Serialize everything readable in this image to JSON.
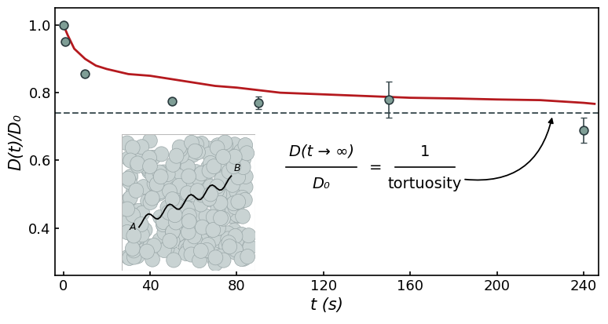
{
  "chart_data": {
    "type": "line",
    "x_label": "t (s)",
    "y_label": "D(t)/D₀",
    "xlim": [
      -4,
      247
    ],
    "xticks": [
      0,
      40,
      80,
      120,
      160,
      200,
      240
    ],
    "ylim": [
      0.26,
      1.05
    ],
    "yticks": [
      0.4,
      0.6,
      0.8,
      1.0
    ],
    "grid": false,
    "series": [
      {
        "type": "line",
        "color": "#b5191e",
        "line_style": "solid",
        "x": [
          0,
          2,
          5,
          10,
          15,
          20,
          30,
          40,
          50,
          60,
          70,
          80,
          100,
          120,
          140,
          160,
          180,
          200,
          220,
          240,
          245
        ],
        "values": [
          1.0,
          0.97,
          0.93,
          0.9,
          0.88,
          0.87,
          0.855,
          0.85,
          0.84,
          0.83,
          0.82,
          0.815,
          0.8,
          0.795,
          0.79,
          0.785,
          0.783,
          0.78,
          0.778,
          0.77,
          0.767
        ]
      },
      {
        "type": "scatter",
        "color": "#7f9e96",
        "marker": "o",
        "x": [
          0,
          1,
          10,
          50,
          90,
          150,
          240
        ],
        "values": [
          1.0,
          0.95,
          0.855,
          0.775,
          0.77,
          0.78,
          0.69
        ],
        "error": [
          0,
          0,
          0,
          0,
          0.018,
          0.053,
          0.037
        ]
      }
    ],
    "reference_line": {
      "value": 0.74,
      "color": "#4a5a5e",
      "line_style": "dashed"
    },
    "annotation": {
      "numerator": "D(t → ∞)",
      "denominator": "D₀",
      "equals": "=",
      "right_numerator": "1",
      "right_denominator": "tortuosity"
    },
    "inset": {
      "start_label": "A",
      "end_label": "B"
    }
  }
}
